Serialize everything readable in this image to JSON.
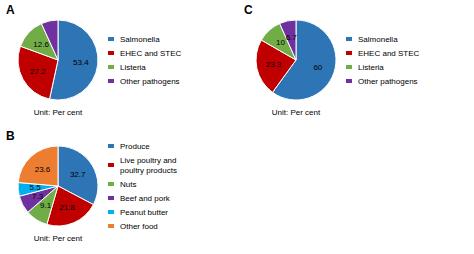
{
  "chart_data": [
    {
      "type": "pie",
      "title": "A",
      "categories": [
        "Salmonella",
        "EHEC and STEC",
        "Listeria",
        "Other pathogens"
      ],
      "values": [
        53.4,
        27.2,
        12.6,
        6.8
      ],
      "colors": [
        "#2E75B6",
        "#C00000",
        "#70AD47",
        "#7030A0"
      ],
      "annotations": [
        "Unit: Per cent"
      ],
      "data_labels": true,
      "legend": "right"
    },
    {
      "type": "pie",
      "title": "B",
      "categories": [
        "Produce",
        "Live poultry and\npoultry products",
        "Nuts",
        "Beef and pork",
        "Peanut butter",
        "Other food"
      ],
      "values": [
        32.7,
        21.8,
        9.1,
        7.3,
        5.5,
        23.6
      ],
      "colors": [
        "#2E75B6",
        "#C00000",
        "#70AD47",
        "#7030A0",
        "#00B0F0",
        "#ED7D31"
      ],
      "annotations": [
        "Unit: Per cent"
      ],
      "data_labels": true,
      "legend": "right"
    },
    {
      "type": "pie",
      "title": "C",
      "categories": [
        "Salmonella",
        "EHEC and STEC",
        "Listeria",
        "Other pathogens"
      ],
      "values": [
        60,
        23.3,
        10,
        6.7
      ],
      "colors": [
        "#2E75B6",
        "#C00000",
        "#70AD47",
        "#7030A0"
      ],
      "annotations": [
        "Unit: Per cent"
      ],
      "data_labels": true,
      "legend": "right"
    }
  ]
}
